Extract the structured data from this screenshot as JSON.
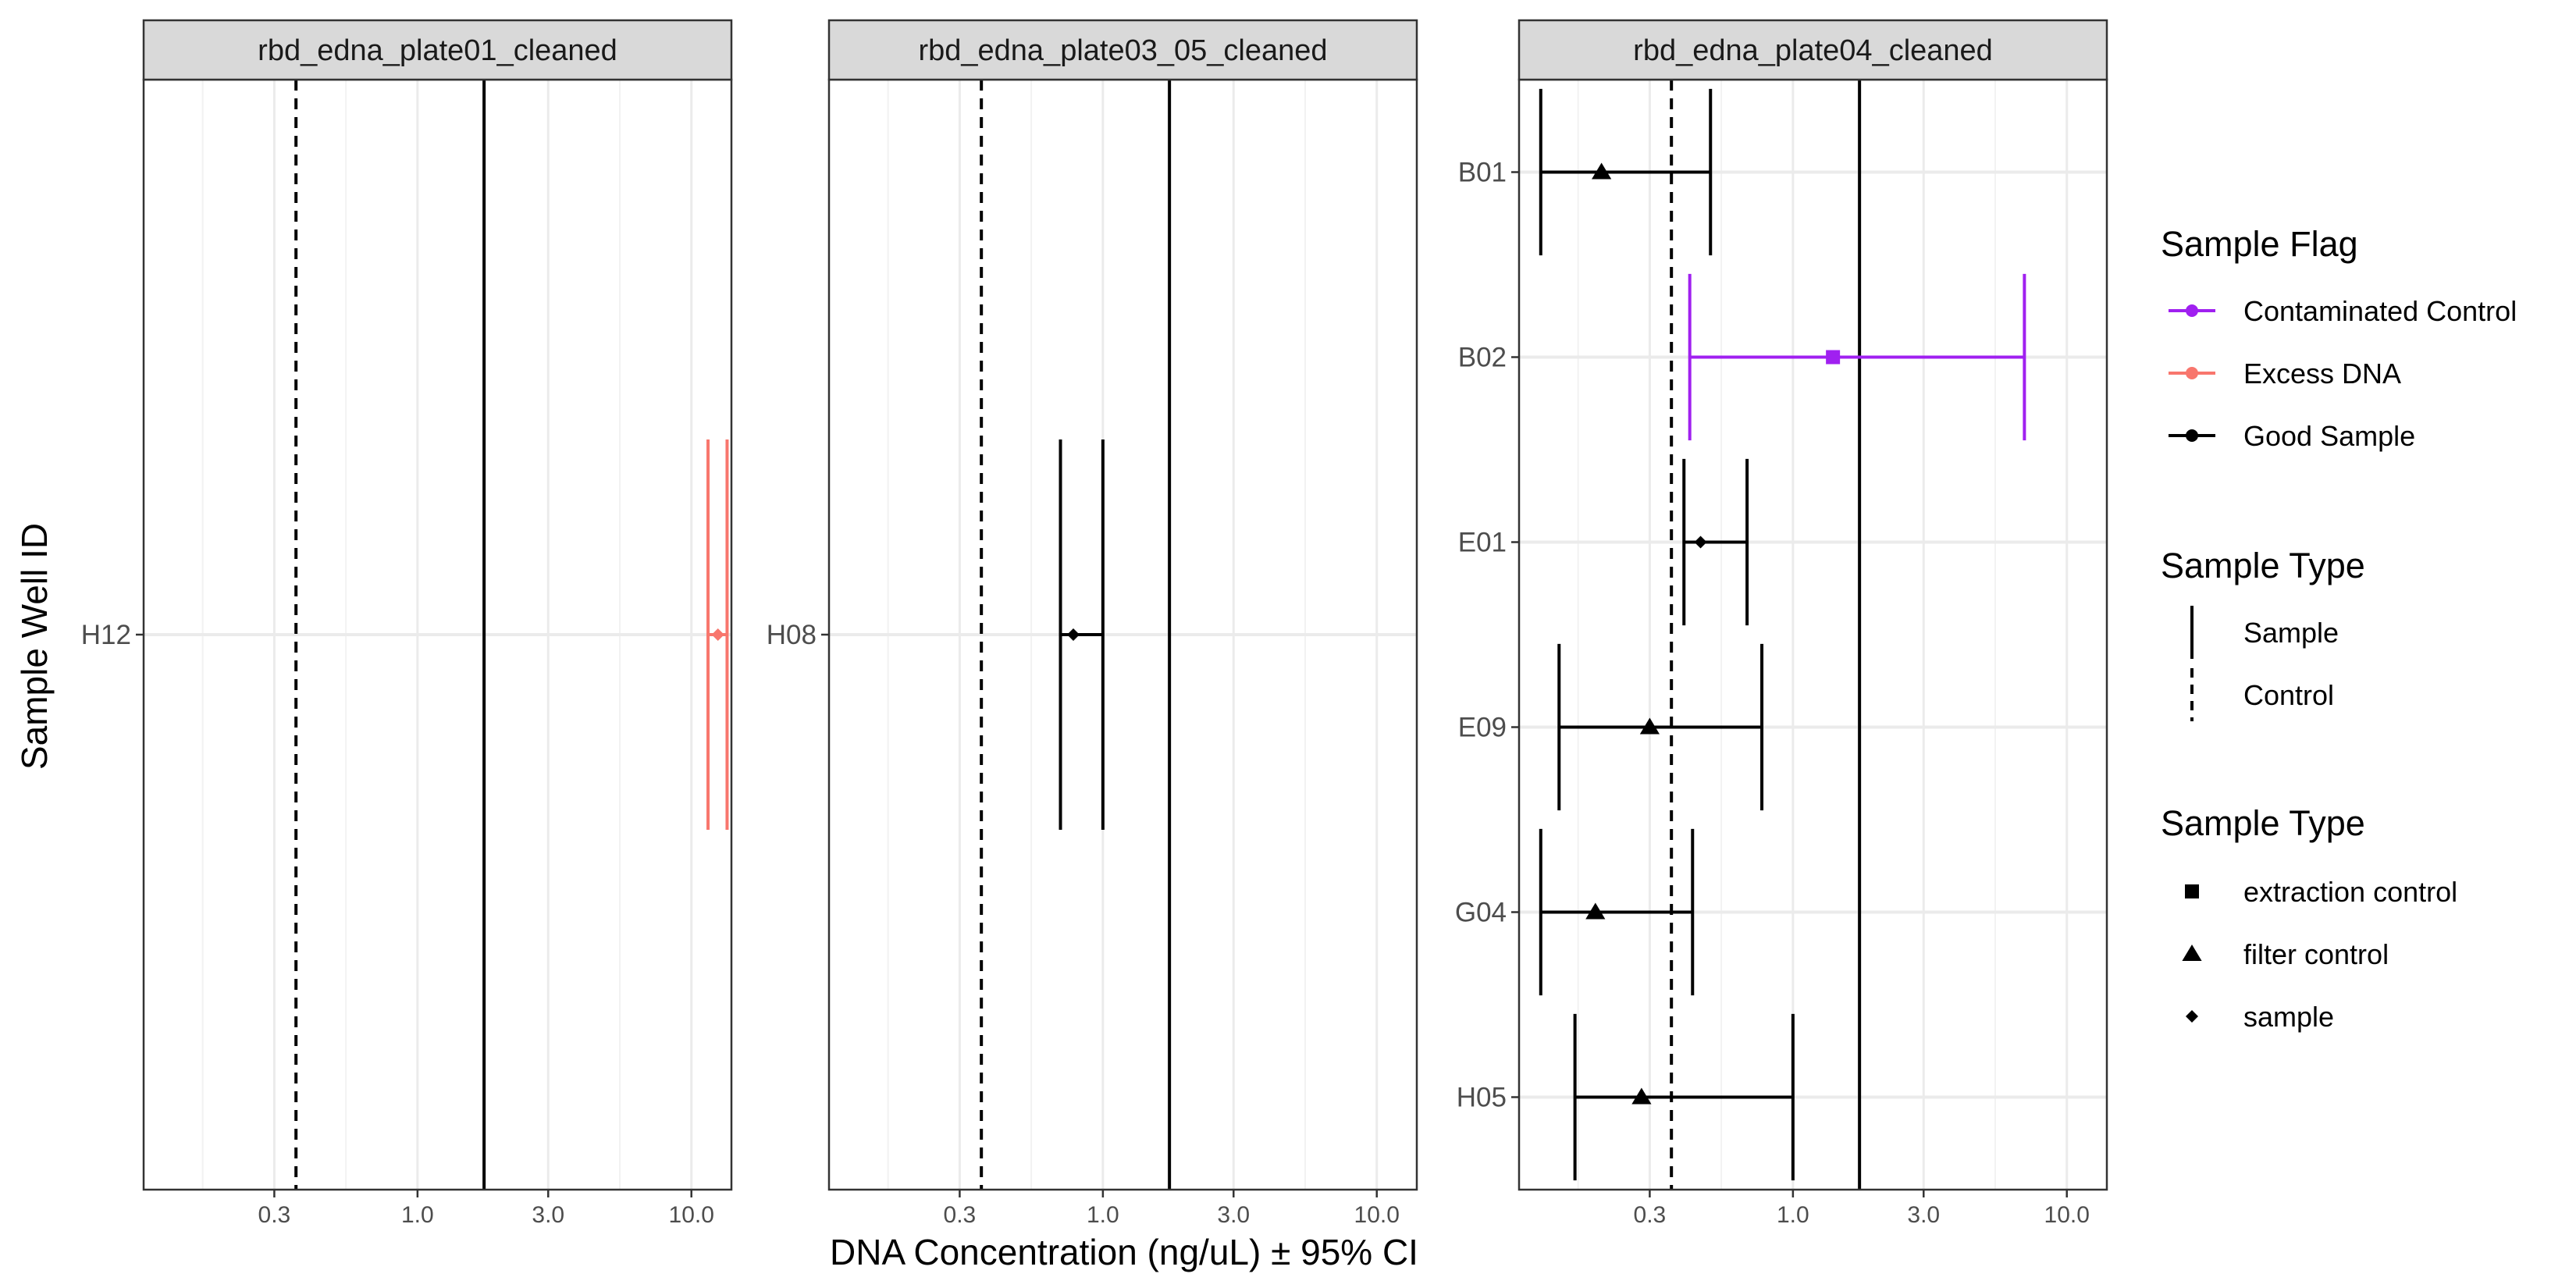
{
  "chart_data": {
    "type": "scatter",
    "subtype": "dot-and-errorbar, faceted",
    "xlabel": "DNA Concentration (ng/uL) ± 95% CI",
    "ylabel": "Sample Well ID",
    "x_scale": "log10",
    "xlim": [
      0.1,
      14
    ],
    "x_ticks": [
      0.3,
      1.0,
      3.0,
      10.0
    ],
    "x_tick_labels": [
      "0.3",
      "1.0",
      "3.0",
      "10.0"
    ],
    "grid": true,
    "reference_lines": [
      {
        "linetype": "Control",
        "x": 0.36
      },
      {
        "linetype": "Sample",
        "x": 1.75
      }
    ],
    "colors": {
      "Contaminated Control": "#a020f0",
      "Excess DNA": "#f8766d",
      "Good Sample": "#000000"
    },
    "facets": [
      {
        "title": "rbd_edna_plate01_cleaned",
        "wells": [
          "H12"
        ],
        "points": [
          {
            "well": "H12",
            "x": 12.5,
            "xmin": 11.5,
            "xmax": 13.5,
            "flag": "Excess DNA",
            "type": "sample"
          }
        ]
      },
      {
        "title": "rbd_edna_plate03_05_cleaned",
        "wells": [
          "H08"
        ],
        "points": [
          {
            "well": "H08",
            "x": 0.78,
            "xmin": 0.7,
            "xmax": 1.0,
            "flag": "Good Sample",
            "type": "sample"
          }
        ]
      },
      {
        "title": "rbd_edna_plate04_cleaned",
        "wells": [
          "B01",
          "B02",
          "E01",
          "E09",
          "G04",
          "H05"
        ],
        "points": [
          {
            "well": "B01",
            "x": 0.2,
            "xmin": 0.12,
            "xmax": 0.5,
            "flag": "Good Sample",
            "type": "filter control"
          },
          {
            "well": "B02",
            "x": 1.4,
            "xmin": 0.42,
            "xmax": 7.0,
            "flag": "Contaminated Control",
            "type": "extraction control"
          },
          {
            "well": "E01",
            "x": 0.46,
            "xmin": 0.4,
            "xmax": 0.68,
            "flag": "Good Sample",
            "type": "sample"
          },
          {
            "well": "E09",
            "x": 0.3,
            "xmin": 0.14,
            "xmax": 0.77,
            "flag": "Good Sample",
            "type": "filter control"
          },
          {
            "well": "G04",
            "x": 0.19,
            "xmin": 0.12,
            "xmax": 0.43,
            "flag": "Good Sample",
            "type": "filter control"
          },
          {
            "well": "H05",
            "x": 0.28,
            "xmin": 0.16,
            "xmax": 1.0,
            "flag": "Good Sample",
            "type": "filter control"
          }
        ]
      }
    ],
    "legends": [
      {
        "title": "Sample Flag",
        "kind": "color",
        "items": [
          "Contaminated Control",
          "Excess DNA",
          "Good Sample"
        ]
      },
      {
        "title": "Sample Type",
        "kind": "linetype",
        "items": [
          "Sample",
          "Control"
        ]
      },
      {
        "title": "Sample Type",
        "kind": "shape",
        "items": [
          "extraction control",
          "filter control",
          "sample"
        ]
      }
    ],
    "legend_position": "right"
  }
}
